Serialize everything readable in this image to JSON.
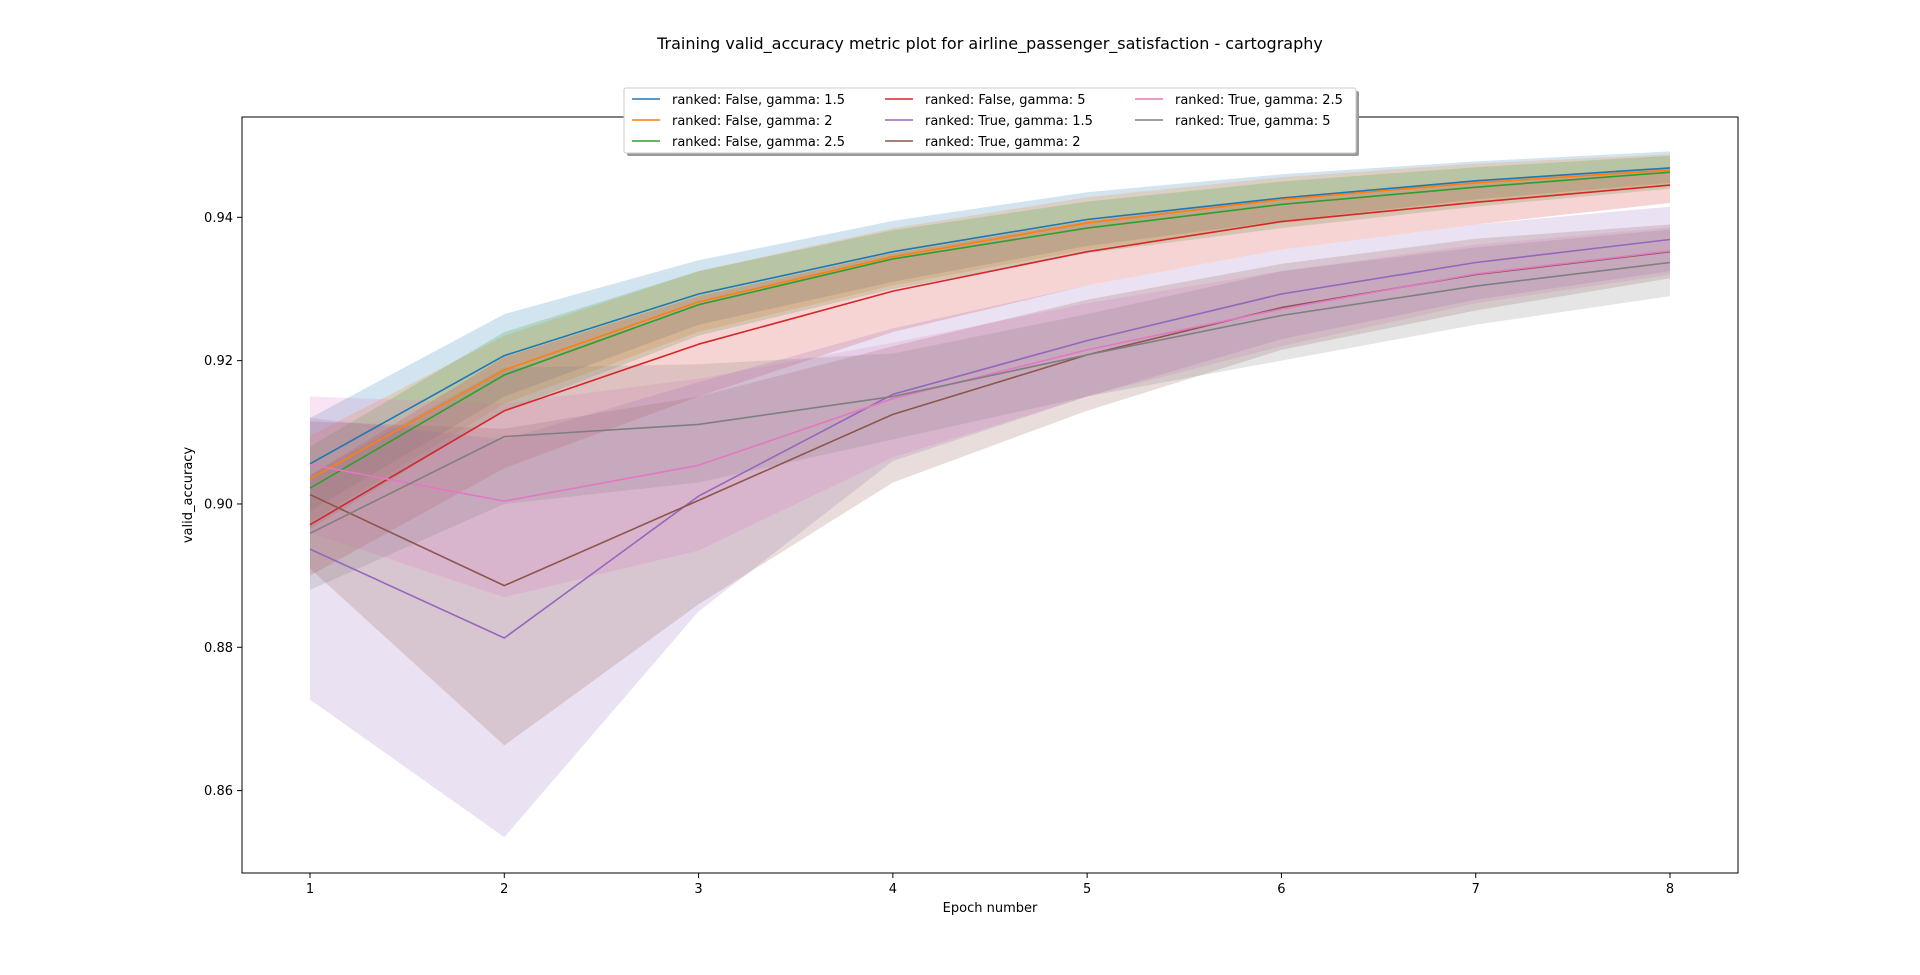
{
  "chart_data": {
    "type": "line",
    "title": "Training valid_accuracy metric plot for airline_passenger_satisfaction - cartography",
    "xlabel": "Epoch number",
    "ylabel": "valid_accuracy",
    "x": [
      1,
      2,
      3,
      4,
      5,
      6,
      7,
      8
    ],
    "xlim": [
      0.65,
      8.35
    ],
    "ylim": [
      0.8485,
      0.954
    ],
    "xticks": [
      "1",
      "2",
      "3",
      "4",
      "5",
      "6",
      "7",
      "8"
    ],
    "yticks": [
      "0.86",
      "0.88",
      "0.90",
      "0.92",
      "0.94"
    ],
    "ytick_values": [
      0.86,
      0.88,
      0.9,
      0.92,
      0.94
    ],
    "grid": false,
    "legend_position": "top-center",
    "legend_columns": 3,
    "band_opacity": 0.2,
    "series": [
      {
        "name": "ranked: False, gamma: 1.5",
        "color": "#1f77b4",
        "values": [
          0.9056,
          0.9207,
          0.9293,
          0.9352,
          0.9397,
          0.9427,
          0.9451,
          0.9469
        ],
        "lower": [
          0.899,
          0.915,
          0.925,
          0.931,
          0.936,
          0.9395,
          0.9425,
          0.9448
        ],
        "upper": [
          0.912,
          0.9265,
          0.934,
          0.9395,
          0.9435,
          0.946,
          0.9478,
          0.9492
        ]
      },
      {
        "name": "ranked: False, gamma: 2",
        "color": "#ff7f0e",
        "values": [
          0.9035,
          0.9187,
          0.9282,
          0.9345,
          0.9392,
          0.9425,
          0.9448,
          0.9466
        ],
        "lower": [
          0.8975,
          0.914,
          0.924,
          0.9305,
          0.9355,
          0.9392,
          0.942,
          0.9444
        ],
        "upper": [
          0.9095,
          0.9235,
          0.9325,
          0.9385,
          0.9428,
          0.9456,
          0.9475,
          0.9488
        ]
      },
      {
        "name": "ranked: False, gamma: 2.5",
        "color": "#2ca02c",
        "values": [
          0.9022,
          0.918,
          0.9278,
          0.9342,
          0.9385,
          0.9418,
          0.9442,
          0.9463
        ],
        "lower": [
          0.8965,
          0.913,
          0.9235,
          0.93,
          0.935,
          0.9385,
          0.9415,
          0.944
        ],
        "upper": [
          0.908,
          0.924,
          0.9325,
          0.9382,
          0.9422,
          0.945,
          0.947,
          0.9486
        ]
      },
      {
        "name": "ranked: False, gamma: 5",
        "color": "#d62728",
        "values": [
          0.8971,
          0.913,
          0.9223,
          0.9297,
          0.9352,
          0.9394,
          0.9421,
          0.9445
        ],
        "lower": [
          0.89,
          0.905,
          0.915,
          0.924,
          0.9305,
          0.9355,
          0.939,
          0.942
        ],
        "upper": [
          0.904,
          0.9205,
          0.929,
          0.935,
          0.9395,
          0.9428,
          0.945,
          0.9468
        ]
      },
      {
        "name": "ranked: True, gamma: 1.5",
        "color": "#9467bd",
        "values": [
          0.8937,
          0.8813,
          0.9011,
          0.9153,
          0.9228,
          0.9293,
          0.9337,
          0.9369
        ],
        "lower": [
          0.8727,
          0.8535,
          0.885,
          0.906,
          0.915,
          0.923,
          0.9285,
          0.9325
        ],
        "upper": [
          0.912,
          0.909,
          0.917,
          0.9245,
          0.9305,
          0.9355,
          0.939,
          0.9415
        ]
      },
      {
        "name": "ranked: True, gamma: 2",
        "color": "#8c564b",
        "values": [
          0.9013,
          0.8886,
          0.9005,
          0.9125,
          0.9208,
          0.9274,
          0.932,
          0.9352
        ],
        "lower": [
          0.891,
          0.8663,
          0.886,
          0.903,
          0.913,
          0.9215,
          0.927,
          0.9315
        ],
        "upper": [
          0.9115,
          0.9105,
          0.915,
          0.922,
          0.9285,
          0.9335,
          0.937,
          0.939
        ]
      },
      {
        "name": "ranked: True, gamma: 2.5",
        "color": "#e377c2",
        "values": [
          0.9055,
          0.9004,
          0.9054,
          0.9147,
          0.9215,
          0.9272,
          0.9321,
          0.9353
        ],
        "lower": [
          0.896,
          0.887,
          0.8935,
          0.9065,
          0.915,
          0.922,
          0.928,
          0.932
        ],
        "upper": [
          0.915,
          0.914,
          0.9175,
          0.9225,
          0.928,
          0.9325,
          0.9362,
          0.9386
        ]
      },
      {
        "name": "ranked: True, gamma: 5",
        "color": "#7f7f7f",
        "values": [
          0.8959,
          0.9094,
          0.9111,
          0.915,
          0.9208,
          0.9263,
          0.9304,
          0.9337
        ],
        "lower": [
          0.888,
          0.9,
          0.903,
          0.909,
          0.915,
          0.92,
          0.925,
          0.929
        ],
        "upper": [
          0.904,
          0.919,
          0.9195,
          0.921,
          0.9265,
          0.9325,
          0.9358,
          0.9383
        ]
      }
    ]
  }
}
